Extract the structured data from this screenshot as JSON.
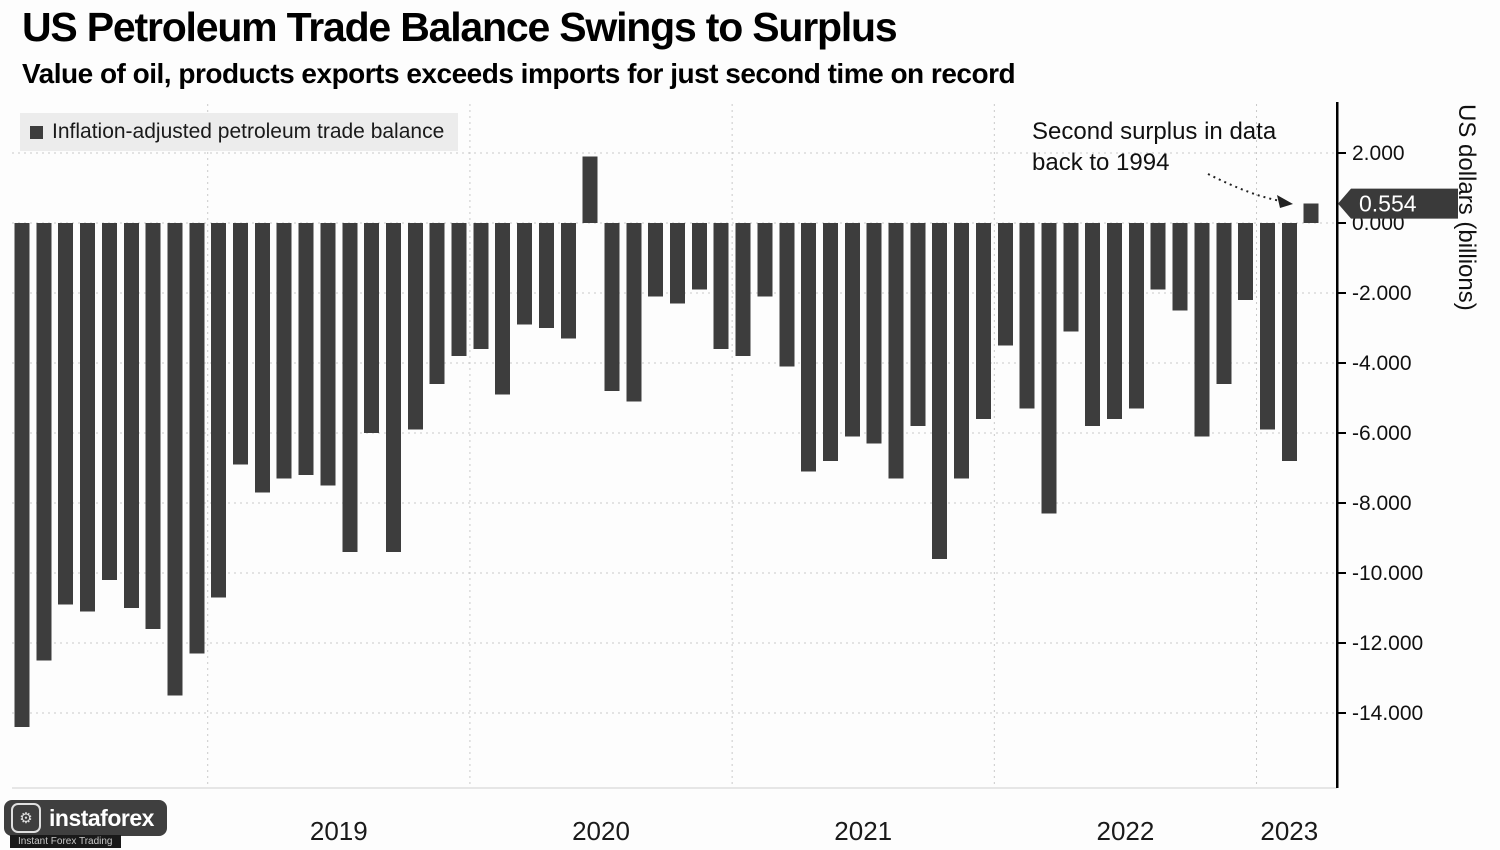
{
  "header": {
    "title": "US Petroleum Trade Balance Swings to Surplus",
    "subtitle": "Value of oil, products exports exceeds imports for just second time on record"
  },
  "legend": {
    "label": "Inflation-adjusted petroleum trade balance"
  },
  "annotation": {
    "line1": "Second surplus in data",
    "line2": "back to 1994",
    "badge_value": "0.554"
  },
  "y_axis": {
    "label": "US dollars (billions)",
    "tick_values": [
      2,
      0,
      -2,
      -4,
      -6,
      -8,
      -10,
      -12,
      -14
    ],
    "tick_labels": [
      "2.000",
      "0.000",
      "-2.000",
      "-4.000",
      "-6.000",
      "-8.000",
      "-10.000",
      "-12.000",
      "-14.000"
    ]
  },
  "x_axis": {
    "years": [
      "2019",
      "2020",
      "2021",
      "2022",
      "2023"
    ]
  },
  "watermark": {
    "brand": "instaforex",
    "tagline": "Instant Forex Trading"
  },
  "colors": {
    "bar": "#3d3d3d",
    "badge_bg": "#3a3a3a",
    "badge_text": "#ffffff",
    "grid": "#c9c9c9",
    "axis": "#000000",
    "year_label": "#1a1a1a"
  },
  "chart_data": {
    "type": "bar",
    "title": "US Petroleum Trade Balance Swings to Surplus",
    "subtitle": "Value of oil, products exports exceeds imports for just second time on record",
    "series_name": "Inflation-adjusted petroleum trade balance",
    "xlabel": "",
    "ylabel": "US dollars (billions)",
    "ylim": [
      -16,
      3
    ],
    "yticks": [
      2,
      0,
      -2,
      -4,
      -6,
      -8,
      -10,
      -12,
      -14
    ],
    "grid": true,
    "legend_position": "top-left",
    "annotation_text": "Second surplus in data back to 1994",
    "last_point_label": "0.554",
    "x": [
      "2018-04",
      "2018-05",
      "2018-06",
      "2018-07",
      "2018-08",
      "2018-09",
      "2018-10",
      "2018-11",
      "2018-12",
      "2019-01",
      "2019-02",
      "2019-03",
      "2019-04",
      "2019-05",
      "2019-06",
      "2019-07",
      "2019-08",
      "2019-09",
      "2019-10",
      "2019-11",
      "2019-12",
      "2020-01",
      "2020-02",
      "2020-03",
      "2020-04",
      "2020-05",
      "2020-06",
      "2020-07",
      "2020-08",
      "2020-09",
      "2020-10",
      "2020-11",
      "2020-12",
      "2021-01",
      "2021-02",
      "2021-03",
      "2021-04",
      "2021-05",
      "2021-06",
      "2021-07",
      "2021-08",
      "2021-09",
      "2021-10",
      "2021-11",
      "2021-12",
      "2022-01",
      "2022-02",
      "2022-03",
      "2022-04",
      "2022-05",
      "2022-06",
      "2022-07",
      "2022-08",
      "2022-09",
      "2022-10",
      "2022-11",
      "2022-12",
      "2023-01",
      "2023-02",
      "2023-03"
    ],
    "values": [
      -14.4,
      -12.5,
      -10.9,
      -11.1,
      -10.2,
      -11.0,
      -11.6,
      -13.5,
      -12.3,
      -10.7,
      -6.9,
      -7.7,
      -7.3,
      -7.2,
      -7.5,
      -9.4,
      -6.0,
      -9.4,
      -5.9,
      -4.6,
      -3.8,
      -3.6,
      -4.9,
      -2.9,
      -3.0,
      -3.3,
      1.9,
      -4.8,
      -5.1,
      -2.1,
      -2.3,
      -1.9,
      -3.6,
      -3.8,
      -2.1,
      -4.1,
      -7.1,
      -6.8,
      -6.1,
      -6.3,
      -7.3,
      -5.8,
      -9.6,
      -7.3,
      -5.6,
      -3.5,
      -5.3,
      -8.3,
      -3.1,
      -5.8,
      -5.6,
      -5.3,
      -1.9,
      -2.5,
      -6.1,
      -4.6,
      -2.2,
      -5.9,
      -6.8,
      0.554
    ]
  }
}
